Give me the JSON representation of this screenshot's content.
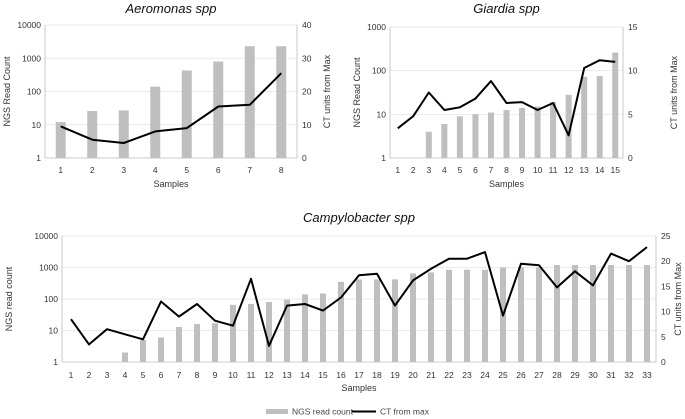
{
  "chart_data": [
    {
      "type": "bar+line",
      "title": "Aeromonas spp",
      "xlabel": "Samples",
      "ylabel_left": "NGS Read Count",
      "ylabel_right": "CT units from Max",
      "y_scale_left": "log10",
      "ylim_left": [
        1,
        10000
      ],
      "yticks_left": [
        "1",
        "10",
        "100",
        "1000",
        "10000"
      ],
      "ylim_right": [
        0,
        40
      ],
      "yticks_right": [
        "0",
        "10",
        "20",
        "30",
        "40"
      ],
      "categories": [
        "1",
        "2",
        "3",
        "4",
        "5",
        "6",
        "7",
        "8"
      ],
      "series": [
        {
          "name": "NGS read count",
          "kind": "bar",
          "axis": "left",
          "color": "#bfbfbf",
          "values": [
            12,
            26,
            27,
            140,
            430,
            800,
            2300,
            2300
          ]
        },
        {
          "name": "CT from max",
          "kind": "line",
          "axis": "right",
          "color": "#000000",
          "values": [
            9.5,
            5.5,
            4.5,
            8,
            9,
            15.5,
            16,
            25.5
          ]
        }
      ]
    },
    {
      "type": "bar+line",
      "title": "Giardia spp",
      "xlabel": "Samples",
      "ylabel_left": "NGS Read Count",
      "ylabel_right": "CT units from Max",
      "y_scale_left": "log10",
      "ylim_left": [
        1,
        1000
      ],
      "yticks_left": [
        "1",
        "10",
        "100",
        "1000"
      ],
      "ylim_right": [
        0,
        15
      ],
      "yticks_right": [
        "0",
        "5",
        "10",
        "15"
      ],
      "categories": [
        "1",
        "2",
        "3",
        "4",
        "5",
        "6",
        "7",
        "8",
        "9",
        "10",
        "11",
        "12",
        "13",
        "14",
        "15"
      ],
      "series": [
        {
          "name": "NGS read count",
          "kind": "bar",
          "axis": "left",
          "color": "#bfbfbf",
          "values": [
            null,
            null,
            4,
            6,
            9,
            10,
            11,
            12.5,
            14,
            15,
            19,
            28,
            72,
            75,
            260
          ]
        },
        {
          "name": "CT from max",
          "kind": "line",
          "axis": "right",
          "color": "#000000",
          "values": [
            3.4,
            4.8,
            7.5,
            5.5,
            5.8,
            6.8,
            8.8,
            6.3,
            6.4,
            5.5,
            6.3,
            2.6,
            10.3,
            11.2,
            11
          ]
        }
      ]
    },
    {
      "type": "bar+line",
      "title": "Campylobacter spp",
      "xlabel": "Samples",
      "ylabel_left": "NGS read count",
      "ylabel_right": "CT units from Max",
      "y_scale_left": "log10",
      "ylim_left": [
        1,
        10000
      ],
      "yticks_left": [
        "1",
        "10",
        "100",
        "1000",
        "10000"
      ],
      "ylim_right": [
        0,
        25
      ],
      "yticks_right": [
        "0",
        "5",
        "10",
        "15",
        "20",
        "25"
      ],
      "categories": [
        "1",
        "2",
        "3",
        "4",
        "5",
        "6",
        "7",
        "8",
        "9",
        "10",
        "11",
        "12",
        "13",
        "14",
        "15",
        "16",
        "17",
        "18",
        "19",
        "20",
        "21",
        "22",
        "23",
        "24",
        "25",
        "26",
        "27",
        "28",
        "29",
        "30",
        "31",
        "32",
        "33"
      ],
      "series": [
        {
          "name": "NGS read count",
          "kind": "bar",
          "axis": "left",
          "color": "#bfbfbf",
          "values": [
            null,
            null,
            null,
            2,
            5,
            6,
            13,
            16,
            17,
            65,
            70,
            80,
            95,
            140,
            150,
            350,
            420,
            420,
            420,
            650,
            700,
            850,
            850,
            850,
            1000,
            1000,
            1000,
            1200,
            1200,
            1200,
            1200,
            1200,
            1200
          ]
        },
        {
          "name": "CT from max",
          "kind": "line",
          "axis": "right",
          "color": "#000000",
          "values": [
            8.5,
            3.5,
            6.5,
            5.5,
            4.5,
            12,
            9,
            11.5,
            8.2,
            7.2,
            16.5,
            3.2,
            11.2,
            11.5,
            10.2,
            12.8,
            17.2,
            17.5,
            11.2,
            16.2,
            18.5,
            20.5,
            20.5,
            21.8,
            9.2,
            19.5,
            19.2,
            14.8,
            18,
            15.2,
            21.5,
            20,
            22.8
          ]
        }
      ]
    }
  ],
  "legend": {
    "bar_label": "NGS read count",
    "line_label": "CT from max",
    "bar_color": "#bfbfbf",
    "line_color": "#000000"
  }
}
